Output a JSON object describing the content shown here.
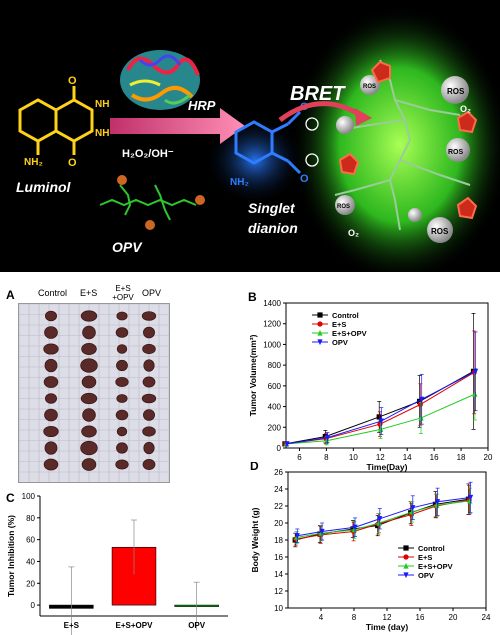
{
  "scheme": {
    "luminol": "Luminol",
    "hrp": "HRP",
    "reagent": "H₂O₂/OH⁻",
    "opv": "OPV",
    "bret": "BRET",
    "singlet": "Singlet",
    "dianion": "dianion",
    "nh2": "NH₂",
    "o2": "O₂",
    "ros": "ROS"
  },
  "panelA": {
    "letter": "A",
    "col_labels": [
      "Control",
      "E+S",
      "E+S +OPV",
      "OPV"
    ]
  },
  "panelB": {
    "letter": "B",
    "chart_data": {
      "type": "line",
      "xlabel": "Time(Day)",
      "ylabel": "Tumor Volume(mm³)",
      "xlim": [
        5,
        20
      ],
      "ylim": [
        0,
        1400
      ],
      "xticks": [
        6,
        8,
        10,
        12,
        14,
        16,
        18,
        20
      ],
      "yticks": [
        0,
        200,
        400,
        600,
        800,
        1000,
        1200,
        1400
      ],
      "x": [
        5,
        8,
        12,
        15,
        19
      ],
      "series": [
        {
          "name": "Control",
          "color": "#000000",
          "marker": "square",
          "values": [
            40,
            110,
            300,
            450,
            740
          ],
          "errors": [
            20,
            60,
            150,
            250,
            560
          ]
        },
        {
          "name": "E+S",
          "color": "#e00000",
          "marker": "circle",
          "values": [
            40,
            90,
            230,
            420,
            730
          ],
          "errors": [
            20,
            50,
            120,
            200,
            400
          ]
        },
        {
          "name": "E+S+OPV",
          "color": "#22cc22",
          "marker": "triangle-up",
          "values": [
            40,
            70,
            180,
            290,
            520
          ],
          "errors": [
            20,
            40,
            90,
            150,
            250
          ]
        },
        {
          "name": "OPV",
          "color": "#1a1aff",
          "marker": "triangle-down",
          "values": [
            40,
            100,
            260,
            470,
            740
          ],
          "errors": [
            20,
            50,
            130,
            240,
            380
          ]
        }
      ]
    }
  },
  "panelC": {
    "letter": "C",
    "chart_data": {
      "type": "bar",
      "categories": [
        "E+S",
        "E+S+OPV",
        "OPV"
      ],
      "values": [
        -3,
        53,
        -1
      ],
      "errors": [
        38,
        25,
        22
      ],
      "colors": [
        "#000000",
        "#ff0000",
        "#00aa00"
      ],
      "ylabel": "Tumor Inhibition (%)",
      "ylim": [
        -10,
        100
      ],
      "yticks": [
        0,
        20,
        40,
        60,
        80,
        100
      ]
    }
  },
  "panelD": {
    "letter": "D",
    "chart_data": {
      "type": "line",
      "xlabel": "Time (day)",
      "ylabel": "Body Weight (g)",
      "xlim": [
        0,
        24
      ],
      "ylim": [
        10,
        26
      ],
      "xticks": [
        4,
        8,
        12,
        16,
        20,
        24
      ],
      "yticks": [
        10,
        12,
        14,
        16,
        18,
        20,
        22,
        24,
        26
      ],
      "x": [
        1,
        4,
        8,
        11,
        15,
        18,
        22
      ],
      "series": [
        {
          "name": "Control",
          "color": "#000000",
          "marker": "square",
          "values": [
            18.0,
            18.7,
            19.3,
            19.7,
            21.2,
            22.2,
            22.8
          ],
          "errors": [
            0.8,
            1.0,
            1.0,
            1.2,
            1.3,
            1.5,
            1.8
          ]
        },
        {
          "name": "E+S",
          "color": "#e00000",
          "marker": "circle",
          "values": [
            18.1,
            18.6,
            19.0,
            19.9,
            21.0,
            22.0,
            22.7
          ],
          "errors": [
            0.7,
            1.0,
            1.1,
            1.2,
            1.3,
            1.4,
            1.7
          ]
        },
        {
          "name": "E+S+OPV",
          "color": "#22cc22",
          "marker": "triangle-up",
          "values": [
            18.3,
            18.8,
            19.2,
            20.0,
            21.3,
            22.1,
            22.6
          ],
          "errors": [
            0.7,
            0.9,
            1.0,
            1.1,
            1.2,
            1.3,
            1.5
          ]
        },
        {
          "name": "OPV",
          "color": "#1a1aff",
          "marker": "triangle-down",
          "values": [
            18.5,
            19.0,
            19.5,
            20.5,
            21.8,
            22.5,
            23.0
          ],
          "errors": [
            0.8,
            1.0,
            1.1,
            1.2,
            1.4,
            1.6,
            1.8
          ]
        }
      ]
    }
  }
}
